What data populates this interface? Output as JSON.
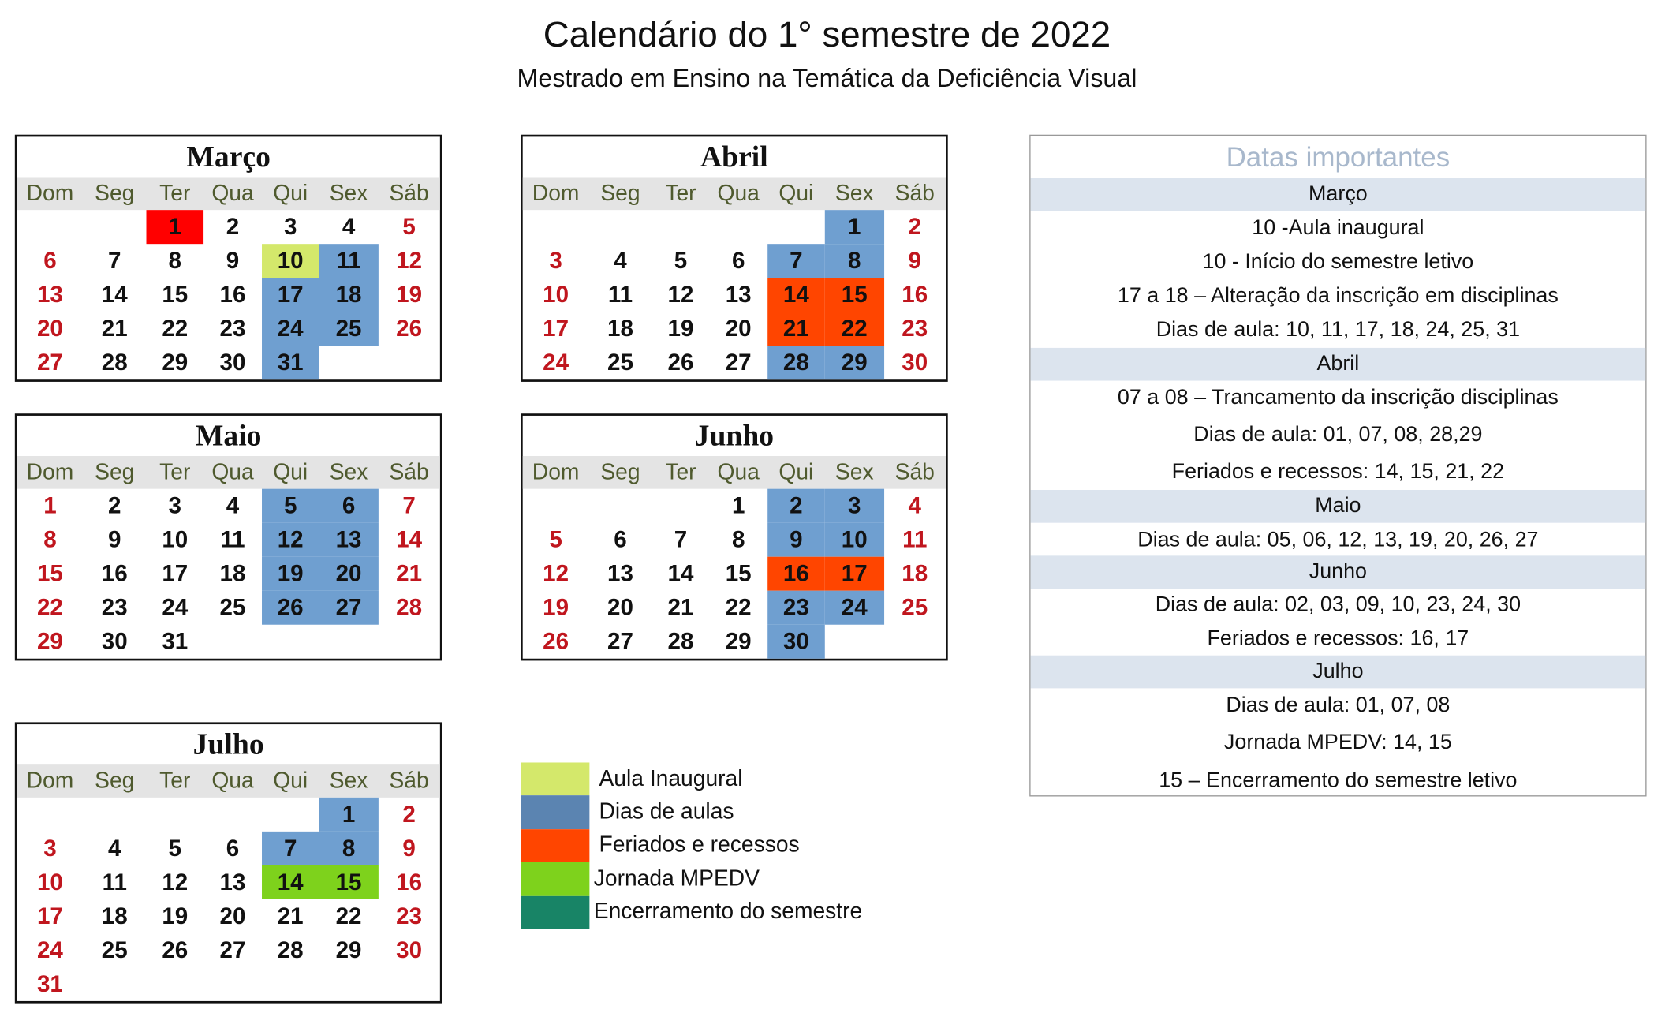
{
  "title": "Calendário do 1° semestre de 2022",
  "subtitle": "Mestrado em Ensino na Temática da Deficiência Visual",
  "weekdays": [
    "Dom",
    "Seg",
    "Ter",
    "Qua",
    "Qui",
    "Sex",
    "Sáb"
  ],
  "colors": {
    "aula_inaugural": "#d4e86b",
    "dias_de_aulas": "#6f9fd0",
    "dias_de_aulas_legend": "#5b84b1",
    "feriados": "#ff4500",
    "carnaval": "#ff0000",
    "jornada": "#7ed21c",
    "encerramento": "#188466",
    "weekend_text": "#c0161e"
  },
  "months": [
    {
      "name": "Março",
      "first_weekday": 2,
      "days": 31,
      "marks": {
        "1": "carnaval",
        "10": "aula_inaugural",
        "11": "dias_de_aulas",
        "17": "dias_de_aulas",
        "18": "dias_de_aulas",
        "24": "dias_de_aulas",
        "25": "dias_de_aulas",
        "31": "dias_de_aulas"
      }
    },
    {
      "name": "Abril",
      "first_weekday": 5,
      "days": 30,
      "marks": {
        "1": "dias_de_aulas",
        "7": "dias_de_aulas",
        "8": "dias_de_aulas",
        "14": "feriados",
        "15": "feriados",
        "21": "feriados",
        "22": "feriados",
        "28": "dias_de_aulas",
        "29": "dias_de_aulas"
      }
    },
    {
      "name": "Maio",
      "first_weekday": 0,
      "days": 31,
      "marks": {
        "5": "dias_de_aulas",
        "6": "dias_de_aulas",
        "12": "dias_de_aulas",
        "13": "dias_de_aulas",
        "19": "dias_de_aulas",
        "20": "dias_de_aulas",
        "26": "dias_de_aulas",
        "27": "dias_de_aulas"
      }
    },
    {
      "name": "Junho",
      "first_weekday": 3,
      "days": 30,
      "marks": {
        "2": "dias_de_aulas",
        "3": "dias_de_aulas",
        "9": "dias_de_aulas",
        "10": "dias_de_aulas",
        "16": "feriados",
        "17": "feriados",
        "23": "dias_de_aulas",
        "24": "dias_de_aulas",
        "30": "dias_de_aulas"
      }
    },
    {
      "name": "Julho",
      "first_weekday": 5,
      "days": 31,
      "marks": {
        "1": "dias_de_aulas",
        "7": "dias_de_aulas",
        "8": "dias_de_aulas",
        "14": "jornada",
        "15": "jornada"
      }
    }
  ],
  "legend": [
    {
      "label": "Aula Inaugural",
      "color": "#d4e86b"
    },
    {
      "label": "Dias de aulas",
      "color": "#5b84b1"
    },
    {
      "label": "Feriados e recessos",
      "color": "#ff4500"
    },
    {
      "label": "Jornada MPEDV",
      "color": "#7ed21c"
    },
    {
      "label": "Encerramento do semestre",
      "color": "#188466"
    }
  ],
  "important_dates": {
    "title": "Datas importantes",
    "rows": [
      {
        "text": "Março",
        "band": true
      },
      {
        "text": "10 -Aula inaugural"
      },
      {
        "text": "10 - Início do semestre letivo"
      },
      {
        "text": "17 a 18 – Alteração da inscrição em disciplinas"
      },
      {
        "text": "Dias de aula: 10, 11, 17, 18, 24, 25, 31"
      },
      {
        "text": "Abril",
        "band": true
      },
      {
        "text": "07 a 08 – Trancamento da inscrição disciplinas"
      },
      {
        "text": "Dias de aula: 01, 07, 08, 28,29"
      },
      {
        "text": "Feriados e recessos: 14, 15, 21, 22"
      },
      {
        "text": "Maio",
        "band": true
      },
      {
        "text": "Dias de aula: 05, 06, 12, 13, 19, 20, 26, 27"
      },
      {
        "text": "Junho",
        "band": true
      },
      {
        "text": "Dias de aula: 02, 03, 09, 10, 23, 24, 30"
      },
      {
        "text": "Feriados e recessos: 16, 17"
      },
      {
        "text": "Julho",
        "band": true
      },
      {
        "text": "Dias de aula: 01, 07, 08"
      },
      {
        "text": "Jornada MPEDV: 14, 15"
      },
      {
        "text": "15 – Encerramento do semestre letivo"
      }
    ]
  }
}
